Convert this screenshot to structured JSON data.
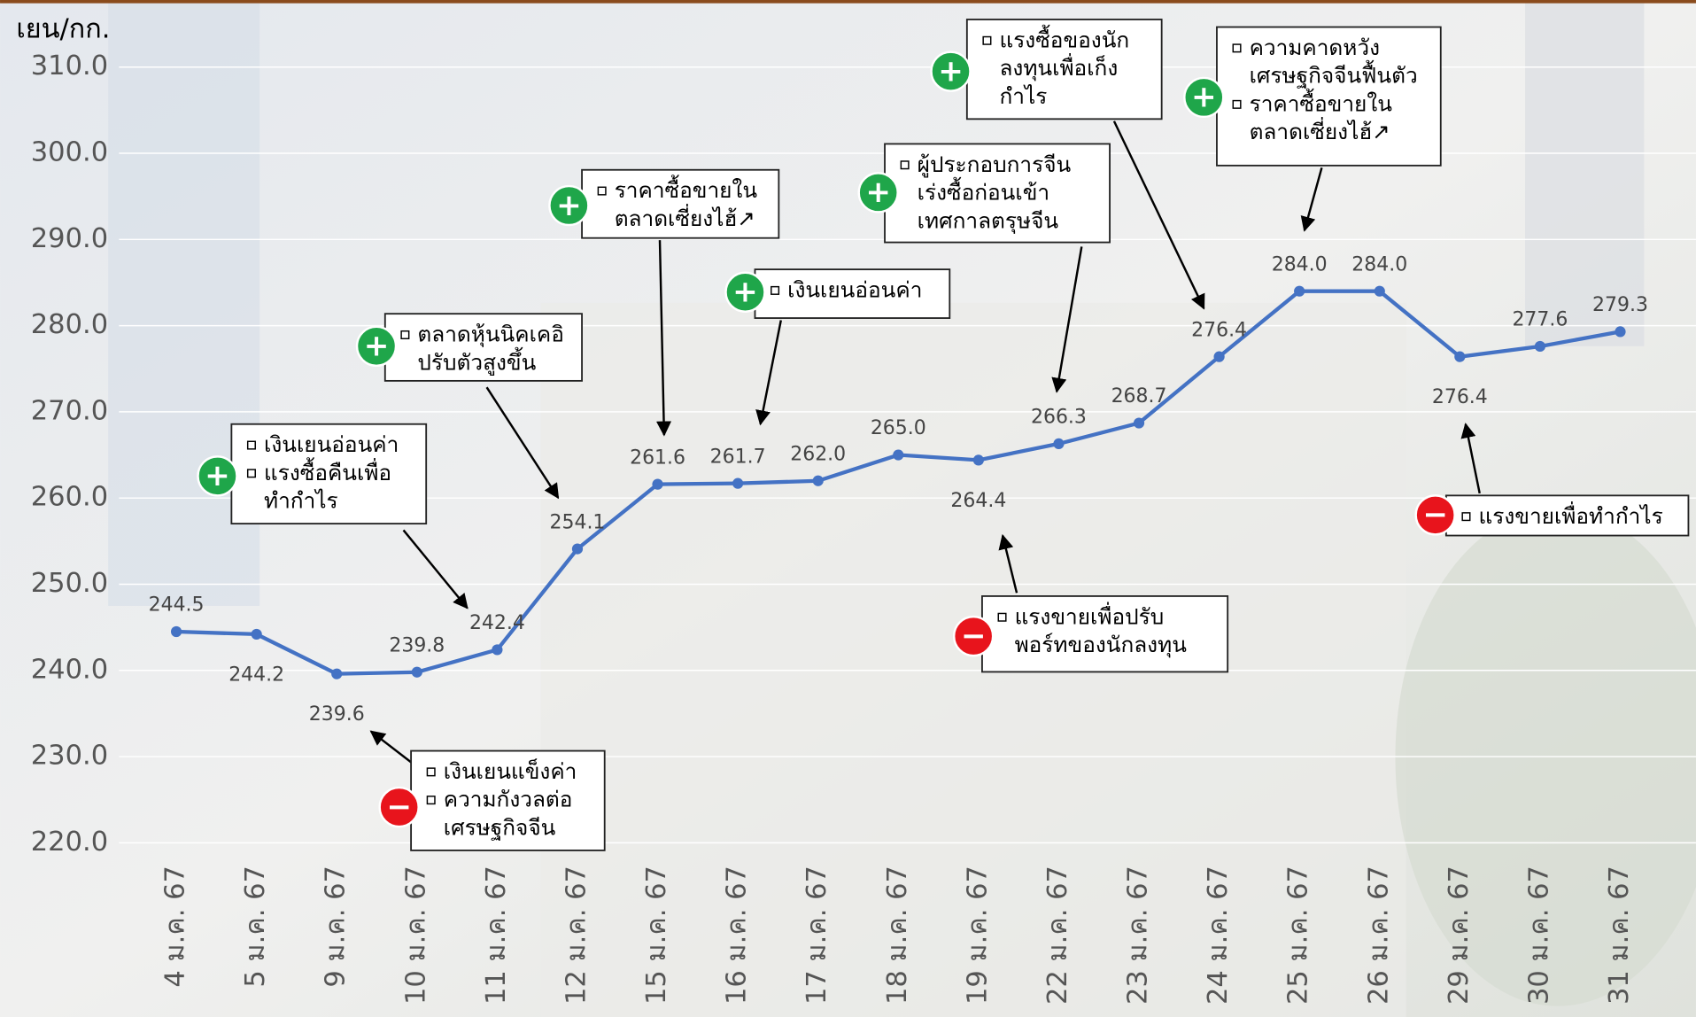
{
  "chart_data": {
    "type": "line",
    "y_label": "เยน/กก.",
    "categories": [
      "4 ม.ค. 67",
      "5 ม.ค. 67",
      "9 ม.ค. 67",
      "10 ม.ค. 67",
      "11 ม.ค. 67",
      "12 ม.ค. 67",
      "15 ม.ค. 67",
      "16 ม.ค. 67",
      "17 ม.ค. 67",
      "18 ม.ค. 67",
      "19 ม.ค. 67",
      "22 ม.ค. 67",
      "23 ม.ค. 67",
      "24 ม.ค. 67",
      "25 ม.ค. 67",
      "26 ม.ค. 67",
      "29 ม.ค. 67",
      "30 ม.ค. 67",
      "31 ม.ค. 67"
    ],
    "values": [
      244.5,
      244.2,
      239.6,
      239.8,
      242.4,
      254.1,
      261.6,
      261.7,
      262.0,
      265.0,
      264.4,
      266.3,
      268.7,
      276.4,
      284.0,
      284.0,
      276.4,
      277.6,
      279.3
    ],
    "value_labels": [
      "244.5",
      "244.2",
      "239.6",
      "239.8",
      "242.4",
      "254.1",
      "261.6",
      "261.7",
      "262.0",
      "265.0",
      "264.4",
      "266.3",
      "268.7",
      "276.4",
      "284.0",
      "284.0",
      "276.4",
      "277.6",
      "279.3"
    ],
    "color": "#4472c4",
    "ylim": [
      220,
      310
    ],
    "yticks": [
      {
        "value": 220,
        "label": "220.0"
      },
      {
        "value": 230,
        "label": "230.0"
      },
      {
        "value": 240,
        "label": "240.0"
      },
      {
        "value": 250,
        "label": "250.0"
      },
      {
        "value": 260,
        "label": "260.0"
      },
      {
        "value": 270,
        "label": "270.0"
      },
      {
        "value": 280,
        "label": "280.0"
      },
      {
        "value": 290,
        "label": "290.0"
      },
      {
        "value": 300,
        "label": "300.0"
      },
      {
        "value": 310,
        "label": "310.0"
      }
    ],
    "grid": true,
    "annotations": [
      {
        "sign": "+",
        "items": [
          [
            "เงินเยนอ่อนค่า"
          ],
          [
            "แรงซื้อคืนเพื่อ",
            "ทำกำไร"
          ]
        ]
      },
      {
        "sign": "+",
        "items": [
          [
            "ตลาดหุ้นนิคเคอิ",
            "ปรับตัวสูงขึ้น"
          ]
        ]
      },
      {
        "sign": "+",
        "items": [
          [
            "ราคาซื้อขายใน",
            "ตลาดเซี่ยงไฮ้↗"
          ]
        ]
      },
      {
        "sign": "+",
        "items": [
          [
            "เงินเยนอ่อนค่า"
          ]
        ]
      },
      {
        "sign": "+",
        "items": [
          [
            "ผู้ประกอบการจีน",
            "เร่งซื้อก่อนเข้า",
            "เทศกาลตรุษจีน"
          ]
        ]
      },
      {
        "sign": "+",
        "items": [
          [
            "แรงซื้อของนัก",
            "ลงทุนเพื่อเก็ง",
            "กำไร"
          ]
        ]
      },
      {
        "sign": "+",
        "items": [
          [
            "ความคาดหวัง",
            "เศรษฐกิจจีนฟื้นตัว"
          ],
          [
            "ราคาซื้อขายใน",
            "ตลาดเซี่ยงไฮ้↗"
          ]
        ]
      },
      {
        "sign": "−",
        "items": [
          [
            "แรงขายเพื่อทำกำไร"
          ]
        ]
      },
      {
        "sign": "−",
        "items": [
          [
            "แรงขายเพื่อปรับ",
            "พอร์ทของนักลงทุน"
          ]
        ]
      },
      {
        "sign": "−",
        "items": [
          [
            "เงินเยนแข็งค่า"
          ],
          [
            "ความกังวลต่อ",
            "เศรษฐกิจจีน"
          ]
        ]
      }
    ]
  }
}
